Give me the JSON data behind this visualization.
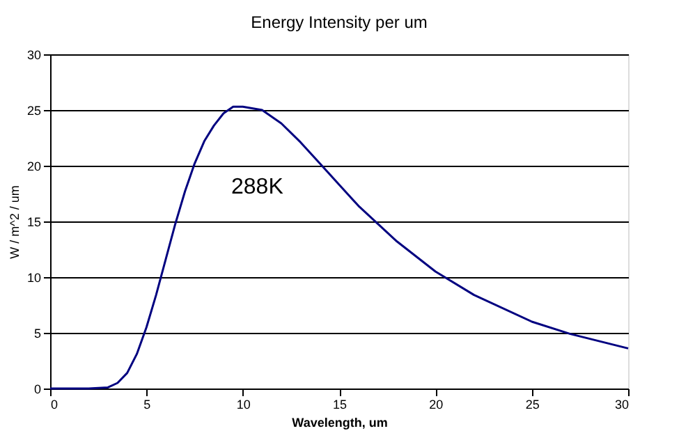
{
  "chart_data": {
    "type": "line",
    "title": "Energy Intensity per um",
    "xlabel": "Wavelength, um",
    "ylabel": "W / m^2 / um",
    "x": [
      0,
      2,
      3,
      3.5,
      4,
      4.5,
      5,
      5.5,
      6,
      6.5,
      7,
      7.5,
      8,
      8.5,
      9,
      9.5,
      10,
      11,
      12,
      13,
      14,
      15,
      16,
      18,
      20,
      22,
      25,
      27,
      30
    ],
    "series": [
      {
        "color": "#000080",
        "values": [
          0,
          0,
          0.1,
          0.5,
          1.4,
          3.1,
          5.5,
          8.4,
          11.6,
          14.8,
          17.7,
          20.2,
          22.2,
          23.6,
          24.7,
          25.3,
          25.3,
          25.0,
          23.8,
          22.1,
          20.2,
          18.3,
          16.4,
          13.2,
          10.5,
          8.4,
          6.0,
          4.9,
          3.6
        ]
      }
    ],
    "xlim": [
      0,
      30
    ],
    "ylim": [
      0,
      30
    ],
    "xticks": [
      0,
      5,
      10,
      15,
      20,
      25,
      30
    ],
    "yticks": [
      0,
      5,
      10,
      15,
      20,
      25,
      30
    ],
    "grid": "y",
    "marker": "none",
    "line_style": "solid",
    "annotations": [
      "288K"
    ]
  }
}
